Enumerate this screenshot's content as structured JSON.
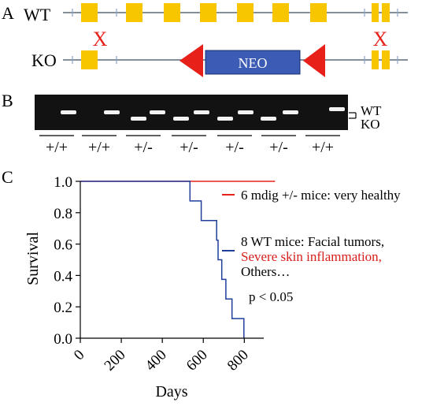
{
  "panel_a": {
    "label": "A",
    "wt_label": "WT",
    "ko_label": "KO",
    "neo_label": "NEO",
    "knockout_mark": "X",
    "exon_color": "#F7C600",
    "neo_color": "#3B5BB5",
    "loxp_color": "#E8201A",
    "mark_color": "#E8201A"
  },
  "panel_b": {
    "label": "B",
    "band_labels": {
      "wt": "WT",
      "ko": "KO"
    },
    "genotypes": [
      "+/+",
      "+/+",
      "+/-",
      "+/-",
      "+/-",
      "+/-",
      "+/+"
    ]
  },
  "panel_c": {
    "label": "C",
    "annotations": {
      "mdig": "6 mdig +/- mice: very healthy",
      "wt_line1": "8 WT mice: Facial tumors,",
      "wt_line2": "Severe skin inflammation,",
      "wt_line3": "Others…",
      "pvalue": "p < 0.05"
    },
    "chart_data": {
      "type": "line",
      "xlabel": "Days",
      "ylabel": "Survival",
      "xlim": [
        0,
        960
      ],
      "ylim": [
        0,
        1
      ],
      "xticks": [
        0,
        200,
        400,
        600,
        800
      ],
      "yticks": [
        0.0,
        0.2,
        0.4,
        0.6,
        0.8,
        1.0
      ],
      "ytick_labels": [
        "0.0",
        "0.2",
        "0.4",
        "0.6",
        "0.8",
        "1.0"
      ],
      "series": [
        {
          "name": "6 mdig +/- mice",
          "color": "#E8201A",
          "step": true,
          "points": [
            [
              0,
              1.0
            ],
            [
              950,
              1.0
            ]
          ]
        },
        {
          "name": "8 WT mice",
          "color": "#1F3F9B",
          "step": true,
          "points": [
            [
              0,
              1.0
            ],
            [
              535,
              1.0
            ],
            [
              535,
              0.875
            ],
            [
              590,
              0.875
            ],
            [
              590,
              0.75
            ],
            [
              665,
              0.75
            ],
            [
              665,
              0.625
            ],
            [
              672,
              0.625
            ],
            [
              672,
              0.5
            ],
            [
              690,
              0.5
            ],
            [
              690,
              0.375
            ],
            [
              710,
              0.375
            ],
            [
              710,
              0.25
            ],
            [
              740,
              0.25
            ],
            [
              740,
              0.125
            ],
            [
              798,
              0.125
            ],
            [
              798,
              0.0
            ]
          ]
        }
      ]
    }
  }
}
